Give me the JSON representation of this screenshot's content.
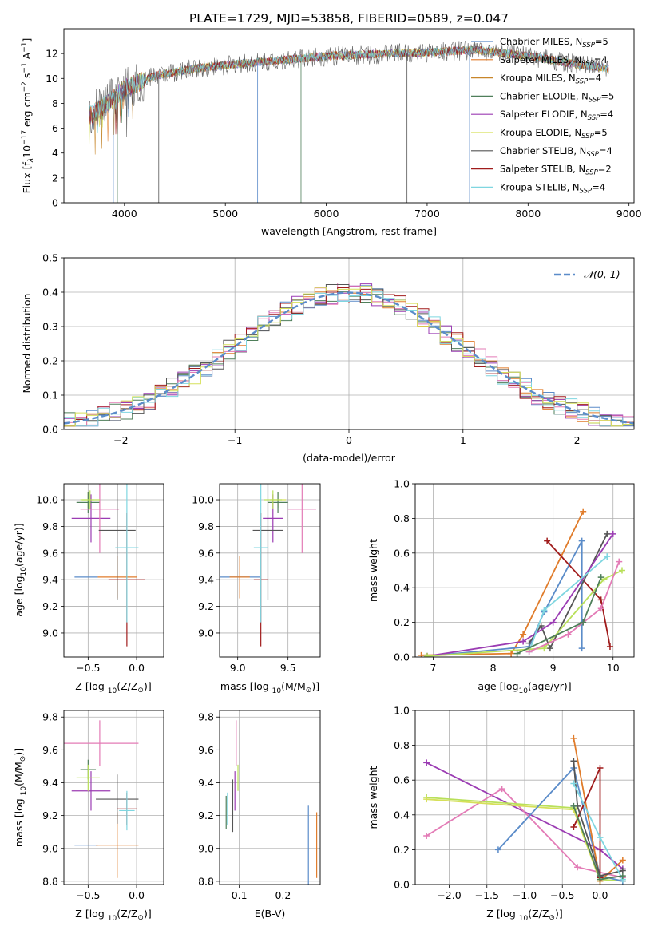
{
  "title": "PLATE=1729, MJD=53858, FIBERID=0589, z=0.047",
  "colors": {
    "Chabrier MILES": "#5b8cc9",
    "Salpeter MILES": "#e07c2b",
    "Kroupa MILES": "#c8862a",
    "Chabrier ELODIE": "#4f7f5a",
    "Salpeter ELODIE": "#9b3cb3",
    "Kroupa ELODIE": "#d6e05a",
    "Chabrier STELIB": "#555555",
    "Salpeter STELIB": "#a01c1c",
    "Kroupa STELIB": "#7fd6e0",
    "pink": "#e37bb6",
    "lime": "#b9e05a",
    "gaussian": "#5b8cc9"
  },
  "chart_data": [
    {
      "type": "line",
      "id": "spectrum",
      "xlabel": "wavelength [Angstrom, rest frame]",
      "ylabel": "Flux [f",
      "ylabel_parts": [
        "Flux [f",
        "λ",
        "10",
        "−17",
        " erg cm",
        "−2",
        " s",
        "−1",
        " A",
        "−1",
        "]"
      ],
      "xlim": [
        3400,
        9050
      ],
      "ylim": [
        0,
        14
      ],
      "xticks": [
        "4000",
        "5000",
        "6000",
        "7000",
        "8000",
        "9000"
      ],
      "yticks": [
        "0",
        "2",
        "4",
        "6",
        "8",
        "10",
        "12"
      ],
      "spectrum_shape": {
        "x_range": [
          3650,
          8800
        ],
        "continuum": [
          [
            3650,
            7.0
          ],
          [
            3800,
            7.8
          ],
          [
            4000,
            9.2
          ],
          [
            4300,
            10.2
          ],
          [
            4700,
            10.8
          ],
          [
            5200,
            11.2
          ],
          [
            6000,
            11.8
          ],
          [
            7000,
            12.1
          ],
          [
            7500,
            12.3
          ],
          [
            8000,
            11.8
          ],
          [
            8500,
            11.1
          ],
          [
            8800,
            10.8
          ]
        ],
        "deep_dips": [
          3890,
          3930,
          4340,
          5320,
          5750,
          6800,
          7420
        ]
      },
      "legend": [
        {
          "name": "Chabrier MILES",
          "nssp": "5"
        },
        {
          "name": "Salpeter MILES",
          "nssp": "4"
        },
        {
          "name": "Kroupa MILES",
          "nssp": "4"
        },
        {
          "name": "Chabrier ELODIE",
          "nssp": "5"
        },
        {
          "name": "Salpeter ELODIE",
          "nssp": "4"
        },
        {
          "name": "Kroupa ELODIE",
          "nssp": "5"
        },
        {
          "name": "Chabrier STELIB",
          "nssp": "4"
        },
        {
          "name": "Salpeter STELIB",
          "nssp": "2"
        },
        {
          "name": "Kroupa STELIB",
          "nssp": "4"
        }
      ],
      "legend_prefix": "N",
      "legend_sub": "SSP",
      "legend_placement": "right"
    },
    {
      "type": "line",
      "id": "residuals",
      "xlabel": "(data-model)/error",
      "ylabel": "Normed distribution",
      "xlim": [
        -2.5,
        2.5
      ],
      "ylim": [
        0,
        0.5
      ],
      "xticks": [
        "−2",
        "−1",
        "0",
        "1",
        "2"
      ],
      "yticks": [
        "0.0",
        "0.1",
        "0.2",
        "0.3",
        "0.4",
        "0.5"
      ],
      "grid": true,
      "bin_width": 0.1,
      "gaussian_label": "𝒩(0, 1)",
      "legend_placement": "top-right"
    },
    {
      "type": "scatter",
      "id": "Z-age",
      "xlabel": "Z [log",
      "xlabel_sub": "10",
      "xlabel_rest": "(Z/Z",
      "ylabel": "age  [log",
      "ylabel_sub": "10",
      "ylabel_rest": "(age/yr)]",
      "xlim": [
        -0.75,
        0.28
      ],
      "ylim": [
        8.82,
        10.12
      ],
      "xticks": [
        "−0.5",
        "0.0"
      ],
      "yticks": [
        "9.0",
        "9.2",
        "9.4",
        "9.6",
        "9.8",
        "10.0"
      ],
      "grid": true,
      "points": [
        {
          "x": -0.52,
          "y": 9.42,
          "xerr": 0.12,
          "yerr": 0.0,
          "c": "Chabrier MILES"
        },
        {
          "x": -0.2,
          "y": 9.42,
          "xerr": 0.2,
          "yerr": 0.16,
          "c": "Salpeter MILES"
        },
        {
          "x": -0.5,
          "y": 10.0,
          "xerr": 0.06,
          "yerr": 0.06,
          "c": "Kroupa ELODIE"
        },
        {
          "x": -0.47,
          "y": 9.86,
          "xerr": 0.2,
          "yerr": 0.18,
          "c": "Salpeter ELODIE"
        },
        {
          "x": -0.5,
          "y": 9.98,
          "xerr": 0.12,
          "yerr": 0.08,
          "c": "Chabrier ELODIE"
        },
        {
          "x": -0.38,
          "y": 9.93,
          "xerr": 0.2,
          "yerr": 0.33,
          "c": "pink"
        },
        {
          "x": -0.2,
          "y": 9.77,
          "xerr": 0.19,
          "yerr": 0.52,
          "c": "Chabrier STELIB"
        },
        {
          "x": -0.1,
          "y": 9.4,
          "xerr": 0.19,
          "yerr": 0.5,
          "c": "Salpeter STELIB"
        },
        {
          "x": -0.1,
          "y": 9.64,
          "xerr": 0.12,
          "yerr": 0.56,
          "c": "Kroupa STELIB"
        },
        {
          "x": -0.48,
          "y": 10.0,
          "xerr": 0.1,
          "yerr": 0.07,
          "c": "lime"
        }
      ]
    },
    {
      "type": "scatter",
      "id": "mass-age",
      "xlabel": "mass [log",
      "xlabel_sub": "10",
      "xlabel_rest": "(M/M",
      "xlim": [
        8.82,
        9.82
      ],
      "ylim": [
        8.82,
        10.12
      ],
      "xticks": [
        "9.0",
        "9.5"
      ],
      "yticks": [
        "9.0",
        "9.2",
        "9.4",
        "9.6",
        "9.8",
        "10.0"
      ],
      "grid": true,
      "points": [
        {
          "x": 9.02,
          "y": 9.42,
          "xerr": 0.2,
          "yerr": 0.0,
          "c": "Chabrier MILES"
        },
        {
          "x": 9.02,
          "y": 9.42,
          "xerr": 0.1,
          "yerr": 0.16,
          "c": "Salpeter MILES"
        },
        {
          "x": 9.4,
          "y": 10.0,
          "xerr": 0.08,
          "yerr": 0.06,
          "c": "Kroupa ELODIE"
        },
        {
          "x": 9.35,
          "y": 9.86,
          "xerr": 0.1,
          "yerr": 0.18,
          "c": "Salpeter ELODIE"
        },
        {
          "x": 9.4,
          "y": 9.98,
          "xerr": 0.1,
          "yerr": 0.08,
          "c": "Chabrier ELODIE"
        },
        {
          "x": 9.64,
          "y": 9.93,
          "xerr": 0.14,
          "yerr": 0.33,
          "c": "pink"
        },
        {
          "x": 9.3,
          "y": 9.77,
          "xerr": 0.15,
          "yerr": 0.52,
          "c": "Chabrier STELIB"
        },
        {
          "x": 9.23,
          "y": 9.4,
          "xerr": 0.07,
          "yerr": 0.5,
          "c": "Salpeter STELIB"
        },
        {
          "x": 9.23,
          "y": 9.64,
          "xerr": 0.07,
          "yerr": 0.56,
          "c": "Kroupa STELIB"
        },
        {
          "x": 9.35,
          "y": 10.0,
          "xerr": 0.09,
          "yerr": 0.07,
          "c": "lime"
        }
      ]
    },
    {
      "type": "line",
      "id": "age-weight",
      "xlabel": "age  [log",
      "xlabel_sub": "10",
      "xlabel_rest": "(age/yr)]",
      "ylabel": "mass weight",
      "xlim": [
        6.7,
        10.35
      ],
      "ylim": [
        0,
        1.0
      ],
      "xticks": [
        "7",
        "8",
        "9",
        "10"
      ],
      "yticks": [
        "0.0",
        "0.2",
        "0.4",
        "0.6",
        "0.8",
        "1.0"
      ],
      "grid": true,
      "series": [
        {
          "c": "Salpeter MILES",
          "x": [
            6.8,
            8.3,
            8.5,
            9.5
          ],
          "y": [
            0.01,
            0.02,
            0.13,
            0.84
          ]
        },
        {
          "c": "Chabrier MILES",
          "x": [
            6.9,
            8.6,
            8.85,
            9.48,
            9.48
          ],
          "y": [
            0.005,
            0.06,
            0.26,
            0.67,
            0.05
          ]
        },
        {
          "c": "Salpeter STELIB",
          "x": [
            8.9,
            9.8,
            9.95
          ],
          "y": [
            0.67,
            0.33,
            0.06
          ]
        },
        {
          "c": "Chabrier STELIB",
          "x": [
            8.6,
            8.8,
            8.95,
            9.9
          ],
          "y": [
            0.08,
            0.18,
            0.05,
            0.71
          ]
        },
        {
          "c": "Salpeter ELODIE",
          "x": [
            6.9,
            8.5,
            9.0,
            10.0
          ],
          "y": [
            0.005,
            0.09,
            0.2,
            0.71
          ]
        },
        {
          "c": "Kroupa STELIB",
          "x": [
            8.6,
            8.85,
            9.9
          ],
          "y": [
            0.03,
            0.27,
            0.58
          ]
        },
        {
          "c": "lime",
          "x": [
            6.9,
            8.85,
            9.85,
            10.15
          ],
          "y": [
            0.005,
            0.05,
            0.45,
            0.5
          ]
        },
        {
          "c": "pink",
          "x": [
            8.6,
            9.25,
            9.8,
            10.1
          ],
          "y": [
            0.03,
            0.13,
            0.28,
            0.55
          ]
        },
        {
          "c": "Chabrier ELODIE",
          "x": [
            8.4,
            9.5,
            9.8
          ],
          "y": [
            0.02,
            0.2,
            0.46
          ]
        }
      ]
    },
    {
      "type": "scatter",
      "id": "Z-mass",
      "xlabel": "Z [log",
      "xlabel_sub": "10",
      "xlabel_rest": "(Z/Z",
      "ylabel": "mass [log",
      "ylabel_sub": "10",
      "ylabel_rest": "(M/M",
      "xlim": [
        -0.75,
        0.28
      ],
      "ylim": [
        8.78,
        9.84
      ],
      "xticks": [
        "−0.5",
        "0.0"
      ],
      "yticks": [
        "8.8",
        "9.0",
        "9.2",
        "9.4",
        "9.6",
        "9.8"
      ],
      "grid": true,
      "points": [
        {
          "x": -0.52,
          "y": 9.02,
          "xerr": 0.12,
          "yerr": 0.0,
          "c": "Chabrier MILES"
        },
        {
          "x": -0.2,
          "y": 9.02,
          "xerr": 0.22,
          "yerr": 0.2,
          "c": "Salpeter MILES"
        },
        {
          "x": -0.5,
          "y": 9.48,
          "xerr": 0.08,
          "yerr": 0.06,
          "c": "Chabrier ELODIE"
        },
        {
          "x": -0.47,
          "y": 9.35,
          "xerr": 0.2,
          "yerr": 0.12,
          "c": "Salpeter ELODIE"
        },
        {
          "x": -0.5,
          "y": 9.43,
          "xerr": 0.12,
          "yerr": 0.08,
          "c": "lime"
        },
        {
          "x": -0.38,
          "y": 9.64,
          "xerr": 0.4,
          "yerr": 0.14,
          "c": "pink"
        },
        {
          "x": -0.2,
          "y": 9.3,
          "xerr": 0.22,
          "yerr": 0.15,
          "c": "Chabrier STELIB"
        },
        {
          "x": -0.1,
          "y": 9.24,
          "xerr": 0.1,
          "yerr": 0.1,
          "c": "Salpeter STELIB"
        },
        {
          "x": -0.1,
          "y": 9.23,
          "xerr": 0.08,
          "yerr": 0.12,
          "c": "Kroupa STELIB"
        }
      ]
    },
    {
      "type": "scatter",
      "id": "ebv-mass",
      "xlabel": "E(B-V)",
      "xlim": [
        0.055,
        0.285
      ],
      "ylim": [
        8.78,
        9.84
      ],
      "xticks": [
        "0.1",
        "0.2"
      ],
      "yticks": [
        "8.8",
        "9.0",
        "9.2",
        "9.4",
        "9.6",
        "9.8"
      ],
      "grid": true,
      "points": [
        {
          "x": 0.258,
          "y": 9.02,
          "yerr": 0.24,
          "c": "Chabrier MILES"
        },
        {
          "x": 0.277,
          "y": 9.02,
          "yerr": 0.2,
          "c": "Salpeter MILES"
        },
        {
          "x": 0.07,
          "y": 9.22,
          "yerr": 0.1,
          "c": "Chabrier ELODIE"
        },
        {
          "x": 0.09,
          "y": 9.35,
          "yerr": 0.12,
          "c": "Salpeter ELODIE"
        },
        {
          "x": 0.097,
          "y": 9.43,
          "yerr": 0.08,
          "c": "lime"
        },
        {
          "x": 0.093,
          "y": 9.64,
          "yerr": 0.14,
          "c": "pink"
        },
        {
          "x": 0.085,
          "y": 9.26,
          "yerr": 0.16,
          "c": "Chabrier STELIB"
        },
        {
          "x": 0.073,
          "y": 9.24,
          "yerr": 0.1,
          "c": "Kroupa STELIB"
        }
      ]
    },
    {
      "type": "line",
      "id": "Z-weight",
      "xlabel": "Z [log",
      "xlabel_sub": "10",
      "xlabel_rest": "(Z/Z",
      "ylabel": "mass weight",
      "xlim": [
        -2.45,
        0.45
      ],
      "ylim": [
        0,
        1.0
      ],
      "xticks": [
        "−2.0",
        "−1.5",
        "−1.0",
        "−0.5",
        "0.0"
      ],
      "yticks": [
        "0.0",
        "0.2",
        "0.4",
        "0.6",
        "0.8",
        "1.0"
      ],
      "grid": true,
      "series": [
        {
          "c": "Salpeter ELODIE",
          "x": [
            -2.3,
            0.0,
            0.3
          ],
          "y": [
            0.7,
            0.2,
            0.09
          ]
        },
        {
          "c": "pink",
          "x": [
            -2.3,
            -1.3,
            -0.3,
            0.3
          ],
          "y": [
            0.28,
            0.55,
            0.1,
            0.04
          ]
        },
        {
          "c": "lime",
          "x": [
            -2.3,
            -0.35,
            0.0,
            0.3
          ],
          "y": [
            0.5,
            0.44,
            0.03,
            0.02
          ]
        },
        {
          "c": "Kroupa ELODIE",
          "x": [
            -2.3,
            -0.35,
            0.0
          ],
          "y": [
            0.49,
            0.43,
            0.02
          ]
        },
        {
          "c": "Chabrier MILES",
          "x": [
            -1.35,
            -0.35,
            0.0,
            0.3
          ],
          "y": [
            0.2,
            0.67,
            0.05,
            0.02
          ]
        },
        {
          "c": "Salpeter MILES",
          "x": [
            -0.35,
            0.0,
            0.3
          ],
          "y": [
            0.84,
            0.02,
            0.14
          ]
        },
        {
          "c": "Salpeter STELIB",
          "x": [
            -0.35,
            0.0,
            0.0
          ],
          "y": [
            0.33,
            0.67,
            0.04
          ]
        },
        {
          "c": "Chabrier STELIB",
          "x": [
            -0.35,
            -0.3,
            0.0,
            0.3
          ],
          "y": [
            0.71,
            0.45,
            0.05,
            0.08
          ]
        },
        {
          "c": "Kroupa STELIB",
          "x": [
            -0.35,
            0.0,
            0.3
          ],
          "y": [
            0.58,
            0.27,
            0.03
          ]
        },
        {
          "c": "Chabrier ELODIE",
          "x": [
            -0.35,
            0.0,
            0.3
          ],
          "y": [
            0.45,
            0.03,
            0.05
          ]
        }
      ]
    }
  ]
}
